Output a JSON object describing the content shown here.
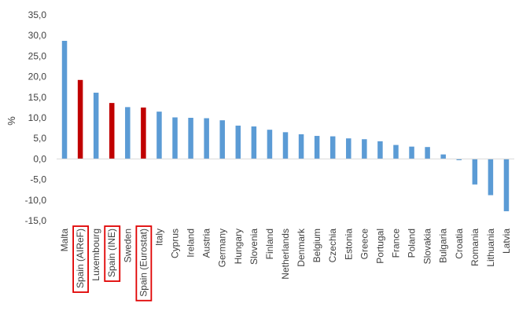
{
  "chart_data": {
    "type": "bar",
    "ylabel": "%",
    "ylim": [
      -15,
      35
    ],
    "ytick_step": 5,
    "ytick_labels": [
      "35,0",
      "30,0",
      "25,0",
      "20,0",
      "15,0",
      "10,0",
      "5,0",
      "0,0",
      "-5,0",
      "-10,0",
      "-15,0"
    ],
    "categories": [
      "Malta",
      "Spain (AIReF)",
      "Luxembourg",
      "Spain (INE)",
      "Sweden",
      "Spain (Eurostat)",
      "Italy",
      "Cyprus",
      "Ireland",
      "Austria",
      "Germany",
      "Hungary",
      "Slovenia",
      "Finland",
      "Netherlands",
      "Denmark",
      "Belgium",
      "Czechia",
      "Estonia",
      "Greece",
      "Portugal",
      "France",
      "Poland",
      "Slovakia",
      "Bulgaria",
      "Croatia",
      "Romania",
      "Lithuania",
      "Latvia"
    ],
    "values": [
      28.7,
      19.2,
      16.1,
      13.6,
      12.6,
      12.5,
      11.5,
      10.1,
      10.0,
      9.9,
      9.4,
      8.1,
      7.9,
      7.1,
      6.5,
      6.0,
      5.6,
      5.5,
      5.0,
      4.8,
      4.3,
      3.4,
      3.0,
      2.9,
      1.1,
      -0.3,
      -6.2,
      -8.8,
      -12.7
    ],
    "highlighted": [
      "Spain (AIReF)",
      "Spain (INE)",
      "Spain (Eurostat)"
    ],
    "colors": {
      "default": "#5B9BD5",
      "highlight": "#C00000",
      "box": "#E00000",
      "axis": "#D9D9D9",
      "text": "#404040"
    }
  }
}
